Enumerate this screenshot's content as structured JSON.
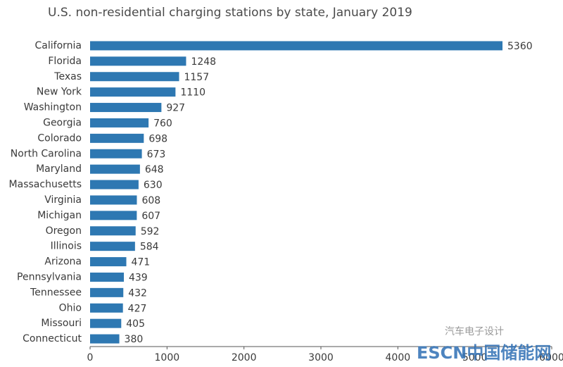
{
  "chart_data": {
    "type": "bar",
    "orientation": "horizontal",
    "title": "U.S. non-residential charging stations by state, January 2019",
    "categories": [
      "California",
      "Florida",
      "Texas",
      "New York",
      "Washington",
      "Georgia",
      "Colorado",
      "North Carolina",
      "Maryland",
      "Massachusetts",
      "Virginia",
      "Michigan",
      "Oregon",
      "Illinois",
      "Arizona",
      "Pennsylvania",
      "Tennessee",
      "Ohio",
      "Missouri",
      "Connecticut"
    ],
    "values": [
      5360,
      1248,
      1157,
      1110,
      927,
      760,
      698,
      673,
      648,
      630,
      608,
      607,
      592,
      584,
      471,
      439,
      432,
      427,
      405,
      380
    ],
    "color": "#2e78b2",
    "xlim": [
      0,
      6000
    ],
    "xticks": [
      0,
      1000,
      2000,
      3000,
      4000,
      5000,
      6000
    ],
    "grid": false
  },
  "watermarks": [
    "汽车电子设计",
    "ESCN中国储能网"
  ]
}
